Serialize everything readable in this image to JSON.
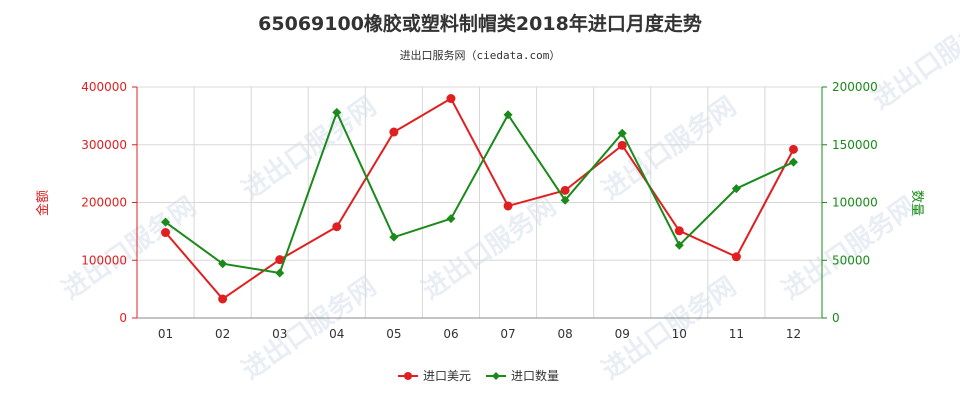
{
  "chart_data": {
    "type": "line",
    "title": "65069100橡胶或塑料制帽类2018年进口月度走势",
    "subtitle": "进出口服务网（ciedata.com）",
    "categories": [
      "01",
      "02",
      "03",
      "04",
      "05",
      "06",
      "07",
      "08",
      "09",
      "10",
      "11",
      "12"
    ],
    "left_axis": {
      "label": "金额",
      "ylim": [
        0,
        400000
      ],
      "ticks": [
        0,
        100000,
        200000,
        300000,
        400000
      ]
    },
    "right_axis": {
      "label": "数量",
      "ylim": [
        0,
        200000
      ],
      "ticks": [
        0,
        50000,
        100000,
        150000,
        200000
      ]
    },
    "series": [
      {
        "name": "进口美元",
        "axis": "left",
        "color": "#e02020",
        "values": [
          148000,
          33000,
          101000,
          158000,
          322000,
          380000,
          194000,
          221000,
          299000,
          151000,
          106000,
          292000
        ]
      },
      {
        "name": "进口数量",
        "axis": "right",
        "color": "#1a8a1a",
        "values": [
          83000,
          47000,
          39000,
          178000,
          70000,
          86000,
          176000,
          102000,
          160000,
          63000,
          112000,
          135000
        ]
      }
    ],
    "grid": true,
    "legend": "bottom-center",
    "watermark": "进出口服务网"
  }
}
